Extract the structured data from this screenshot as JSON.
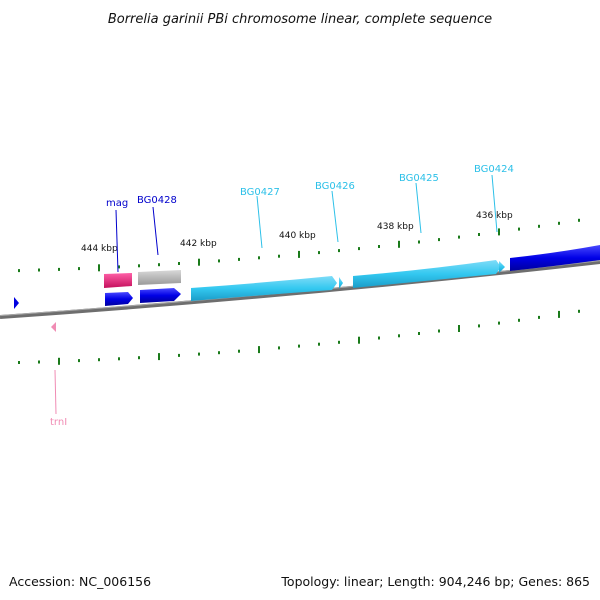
{
  "title": "Borrelia garinii PBi chromosome linear, complete sequence",
  "footer": {
    "accession": "Accession: NC_006156",
    "summary": "Topology: linear; Length: 904,246 bp; Genes: 865"
  },
  "scale_labels": [
    "444 kbp",
    "442 kbp",
    "440 kbp",
    "438 kbp",
    "436 kbp"
  ],
  "gene_labels": {
    "mag": "mag",
    "BG0428": "BG0428",
    "BG0427": "BG0427",
    "BG0426": "BG0426",
    "BG0425": "BG0425",
    "BG0424": "BG0424",
    "trnI": "trnI"
  },
  "colors": {
    "background": "#ffffff",
    "backbone": "#7f7f7f",
    "tick": "#1a7a1a",
    "cds_dark_blue": "#0000e0",
    "cds_light_blue": "#33c8f0",
    "gene_magenta": "#e8207a",
    "gene_gray": "#b4b4b4",
    "trna_pink": "#f08cb4",
    "label_dark_blue": "#0000cc",
    "label_light_blue": "#2cc0e8",
    "label_pink": "#f08cb4"
  }
}
